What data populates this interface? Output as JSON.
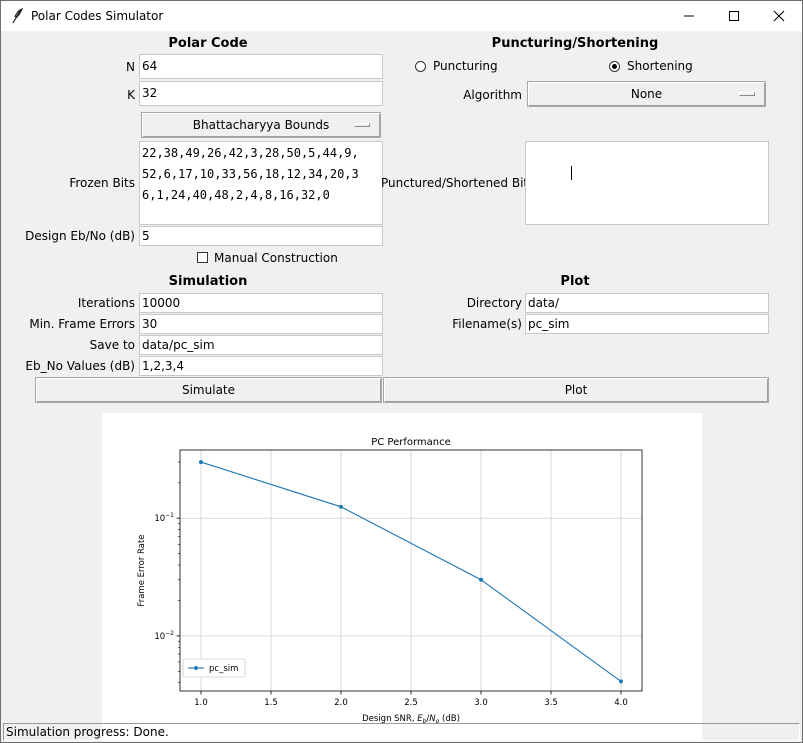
{
  "window": {
    "title": "Polar Codes Simulator"
  },
  "polar": {
    "header": "Polar Code",
    "n_label": "N",
    "n_value": "64",
    "k_label": "K",
    "k_value": "32",
    "construction_method": "Bhattacharyya Bounds",
    "frozen_label": "Frozen Bits",
    "frozen_lines": [
      "22,38,49,26,42,3,28,50,5,44,9,",
      "52,6,17,10,33,56,18,12,34,20,3",
      "6,1,24,40,48,2,4,8,16,32,0"
    ],
    "design_label": "Design Eb/No (dB)",
    "design_value": "5",
    "manual_label": "Manual Construction"
  },
  "punct": {
    "header": "Puncturing/Shortening",
    "opt_puncturing": "Puncturing",
    "opt_shortening": "Shortening",
    "selected": "Shortening",
    "algorithm_label": "Algorithm",
    "algorithm_value": "None",
    "bits_label": "Punctured/Shortened Bits",
    "bits_value": ""
  },
  "simulation": {
    "header": "Simulation",
    "iterations_label": "Iterations",
    "iterations_value": "10000",
    "frame_errors_label": "Min. Frame Errors",
    "frame_errors_value": "30",
    "save_label": "Save to",
    "save_value": "data/pc_sim",
    "ebno_label": "Eb_No Values (dB)",
    "ebno_value": "1,2,3,4",
    "button": "Simulate"
  },
  "plot": {
    "header": "Plot",
    "directory_label": "Directory",
    "directory_value": "data/",
    "filenames_label": "Filename(s)",
    "filenames_value": "pc_sim",
    "button": "Plot"
  },
  "chart_data": {
    "type": "line",
    "title": "PC Performance",
    "xlabel": "Design SNR, E_b/N_o (dB)",
    "ylabel": "Frame Error Rate",
    "yscale": "log",
    "xlim": [
      0.85,
      4.15
    ],
    "ylim": [
      0.0034,
      0.38
    ],
    "xticks": [
      "1.0",
      "1.5",
      "2.0",
      "2.5",
      "3.0",
      "3.5",
      "4.0"
    ],
    "xtick_values": [
      1.0,
      1.5,
      2.0,
      2.5,
      3.0,
      3.5,
      4.0
    ],
    "ytick_values": [
      0.01,
      0.1
    ],
    "grid": true,
    "legend_position": "lower-left",
    "color": "#1f77b4",
    "series": [
      {
        "name": "pc_sim",
        "x": [
          1,
          2,
          3,
          4
        ],
        "y": [
          0.3,
          0.125,
          0.03,
          0.0041
        ]
      }
    ]
  },
  "status": {
    "text": "Simulation progress: Done."
  }
}
